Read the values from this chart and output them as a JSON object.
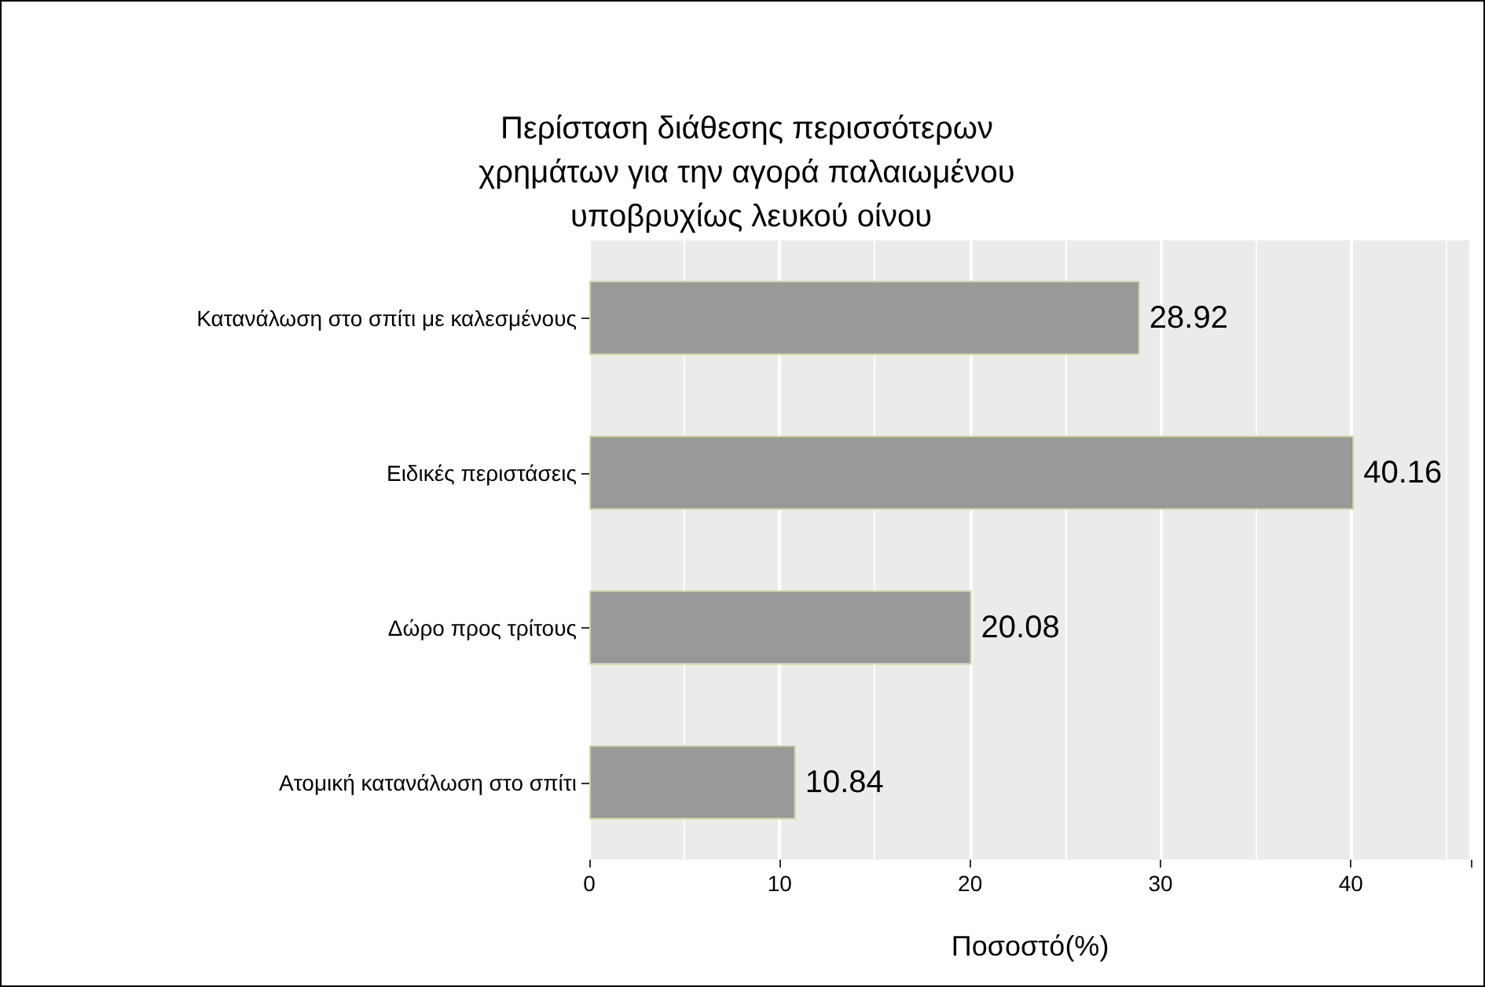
{
  "chart_data": {
    "type": "bar",
    "orientation": "horizontal",
    "title": "Περίσταση διάθεσης περισσότερων χρημάτων για την αγορά παλαιωμένου υποβρυχίως λευκού οίνου",
    "categories": [
      "Κατανάλωση στο σπίτι με καλεσμένους",
      "Ειδικές περιστάσεις",
      "Δώρο προς τρίτους",
      "Ατομική κατανάλωση στο σπίτι"
    ],
    "values": [
      28.92,
      40.16,
      20.08,
      10.84
    ],
    "color": "#999999",
    "xlabel": "Ποσοστό(%)",
    "xlim": [
      0,
      46.3
    ],
    "xticks": [
      0,
      10,
      20,
      30,
      40
    ],
    "grid": "x",
    "data_labels": true
  }
}
